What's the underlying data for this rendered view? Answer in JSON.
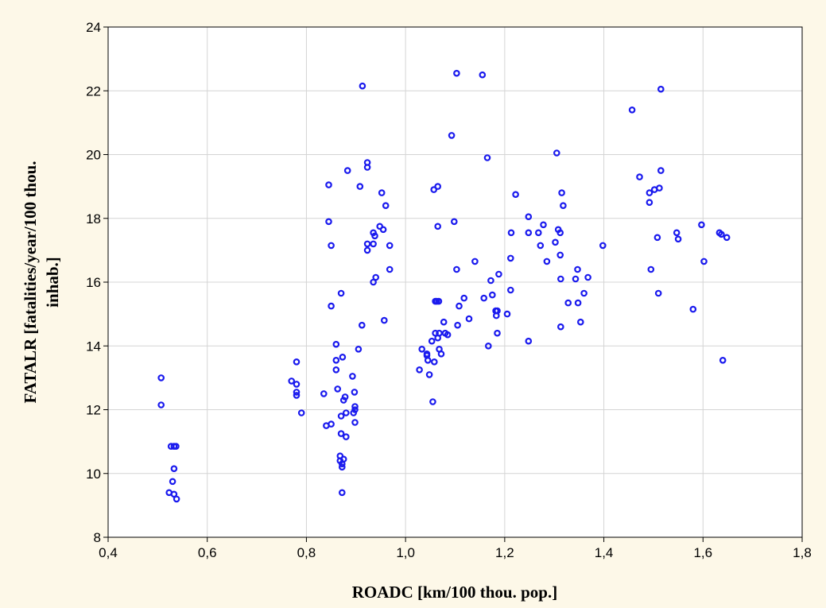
{
  "colors": {
    "frame_background": "#fdf8e8",
    "plot_background": "#ffffff",
    "grid": "#d4d4d4",
    "marker": "#1a1aee",
    "axis": "#000000"
  },
  "chart_data": {
    "type": "scatter",
    "title": "",
    "xlabel": "ROADC [km/100 thou. pop.]",
    "ylabel_lines": [
      "FATALR [fatalities/year/100 thou.",
      "inhab.]"
    ],
    "xlim": [
      0.4,
      1.8
    ],
    "ylim": [
      8,
      24
    ],
    "x_tick_labels": [
      "0,4",
      "0,6",
      "0,8",
      "1,0",
      "1,2",
      "1,4",
      "1,6",
      "1,8"
    ],
    "y_tick_labels": [
      "8",
      "10",
      "12",
      "14",
      "16",
      "18",
      "20",
      "22",
      "24"
    ],
    "grid": true,
    "legend": "none",
    "marker": "open-circle",
    "points": [
      [
        0.507,
        13.0
      ],
      [
        0.507,
        12.15
      ],
      [
        0.527,
        10.85
      ],
      [
        0.533,
        10.85
      ],
      [
        0.537,
        10.85
      ],
      [
        0.533,
        10.15
      ],
      [
        0.53,
        9.75
      ],
      [
        0.523,
        9.4
      ],
      [
        0.533,
        9.35
      ],
      [
        0.538,
        9.2
      ],
      [
        0.77,
        12.9
      ],
      [
        0.78,
        13.5
      ],
      [
        0.78,
        12.8
      ],
      [
        0.78,
        12.55
      ],
      [
        0.78,
        12.45
      ],
      [
        0.79,
        11.9
      ],
      [
        0.835,
        12.5
      ],
      [
        0.84,
        11.5
      ],
      [
        0.85,
        11.55
      ],
      [
        0.845,
        19.05
      ],
      [
        0.845,
        17.9
      ],
      [
        0.85,
        17.15
      ],
      [
        0.85,
        15.25
      ],
      [
        0.86,
        14.05
      ],
      [
        0.86,
        13.55
      ],
      [
        0.86,
        13.25
      ],
      [
        0.863,
        12.65
      ],
      [
        0.87,
        11.8
      ],
      [
        0.87,
        11.25
      ],
      [
        0.868,
        10.55
      ],
      [
        0.868,
        10.4
      ],
      [
        0.872,
        10.3
      ],
      [
        0.875,
        10.45
      ],
      [
        0.872,
        10.2
      ],
      [
        0.872,
        9.4
      ],
      [
        0.87,
        15.65
      ],
      [
        0.873,
        13.65
      ],
      [
        0.875,
        12.3
      ],
      [
        0.878,
        12.4
      ],
      [
        0.88,
        11.15
      ],
      [
        0.88,
        11.9
      ],
      [
        0.883,
        19.5
      ],
      [
        0.893,
        13.05
      ],
      [
        0.897,
        12.55
      ],
      [
        0.895,
        11.9
      ],
      [
        0.898,
        12.0
      ],
      [
        0.898,
        12.1
      ],
      [
        0.898,
        11.6
      ],
      [
        0.905,
        13.9
      ],
      [
        0.908,
        19.0
      ],
      [
        0.912,
        14.65
      ],
      [
        0.913,
        22.15
      ],
      [
        0.923,
        19.75
      ],
      [
        0.923,
        19.6
      ],
      [
        0.923,
        17.2
      ],
      [
        0.923,
        17.0
      ],
      [
        0.935,
        17.55
      ],
      [
        0.935,
        17.2
      ],
      [
        0.938,
        17.45
      ],
      [
        0.935,
        16.0
      ],
      [
        0.94,
        16.15
      ],
      [
        0.948,
        17.75
      ],
      [
        0.952,
        18.8
      ],
      [
        0.955,
        17.65
      ],
      [
        0.957,
        14.8
      ],
      [
        0.96,
        18.4
      ],
      [
        0.968,
        17.15
      ],
      [
        0.968,
        16.4
      ],
      [
        1.028,
        13.25
      ],
      [
        1.033,
        13.9
      ],
      [
        1.043,
        13.75
      ],
      [
        1.043,
        13.7
      ],
      [
        1.045,
        13.55
      ],
      [
        1.048,
        13.1
      ],
      [
        1.053,
        14.15
      ],
      [
        1.055,
        12.25
      ],
      [
        1.058,
        13.5
      ],
      [
        1.057,
        18.9
      ],
      [
        1.06,
        14.4
      ],
      [
        1.06,
        15.4
      ],
      [
        1.063,
        15.4
      ],
      [
        1.067,
        15.4
      ],
      [
        1.065,
        19.0
      ],
      [
        1.065,
        17.75
      ],
      [
        1.068,
        14.4
      ],
      [
        1.065,
        14.25
      ],
      [
        1.068,
        13.9
      ],
      [
        1.072,
        13.75
      ],
      [
        1.077,
        14.75
      ],
      [
        1.08,
        14.4
      ],
      [
        1.085,
        14.35
      ],
      [
        1.093,
        20.6
      ],
      [
        1.098,
        17.9
      ],
      [
        1.103,
        16.4
      ],
      [
        1.103,
        22.55
      ],
      [
        1.105,
        14.65
      ],
      [
        1.108,
        15.25
      ],
      [
        1.118,
        15.5
      ],
      [
        1.128,
        14.85
      ],
      [
        1.14,
        16.65
      ],
      [
        1.155,
        22.5
      ],
      [
        1.158,
        15.5
      ],
      [
        1.165,
        19.9
      ],
      [
        1.167,
        14.0
      ],
      [
        1.172,
        16.05
      ],
      [
        1.175,
        15.6
      ],
      [
        1.182,
        15.1
      ],
      [
        1.183,
        14.95
      ],
      [
        1.185,
        14.4
      ],
      [
        1.185,
        15.1
      ],
      [
        1.188,
        16.25
      ],
      [
        1.205,
        15.0
      ],
      [
        1.212,
        15.75
      ],
      [
        1.212,
        16.75
      ],
      [
        1.213,
        17.55
      ],
      [
        1.222,
        18.75
      ],
      [
        1.248,
        18.05
      ],
      [
        1.248,
        17.55
      ],
      [
        1.248,
        14.15
      ],
      [
        1.268,
        17.55
      ],
      [
        1.272,
        17.15
      ],
      [
        1.278,
        17.8
      ],
      [
        1.285,
        16.65
      ],
      [
        1.302,
        17.25
      ],
      [
        1.305,
        20.05
      ],
      [
        1.308,
        17.65
      ],
      [
        1.312,
        17.55
      ],
      [
        1.312,
        16.85
      ],
      [
        1.313,
        16.1
      ],
      [
        1.313,
        14.6
      ],
      [
        1.315,
        18.8
      ],
      [
        1.318,
        18.4
      ],
      [
        1.328,
        15.35
      ],
      [
        1.343,
        16.1
      ],
      [
        1.347,
        16.4
      ],
      [
        1.348,
        15.35
      ],
      [
        1.353,
        14.75
      ],
      [
        1.36,
        15.65
      ],
      [
        1.368,
        16.15
      ],
      [
        1.398,
        17.15
      ],
      [
        1.457,
        21.4
      ],
      [
        1.472,
        19.3
      ],
      [
        1.492,
        18.8
      ],
      [
        1.492,
        18.5
      ],
      [
        1.495,
        16.4
      ],
      [
        1.502,
        18.9
      ],
      [
        1.508,
        17.4
      ],
      [
        1.51,
        15.65
      ],
      [
        1.512,
        18.95
      ],
      [
        1.515,
        22.05
      ],
      [
        1.515,
        19.5
      ],
      [
        1.547,
        17.55
      ],
      [
        1.55,
        17.35
      ],
      [
        1.58,
        15.15
      ],
      [
        1.597,
        17.8
      ],
      [
        1.602,
        16.65
      ],
      [
        1.633,
        17.55
      ],
      [
        1.637,
        17.5
      ],
      [
        1.64,
        13.55
      ],
      [
        1.648,
        17.4
      ]
    ]
  }
}
